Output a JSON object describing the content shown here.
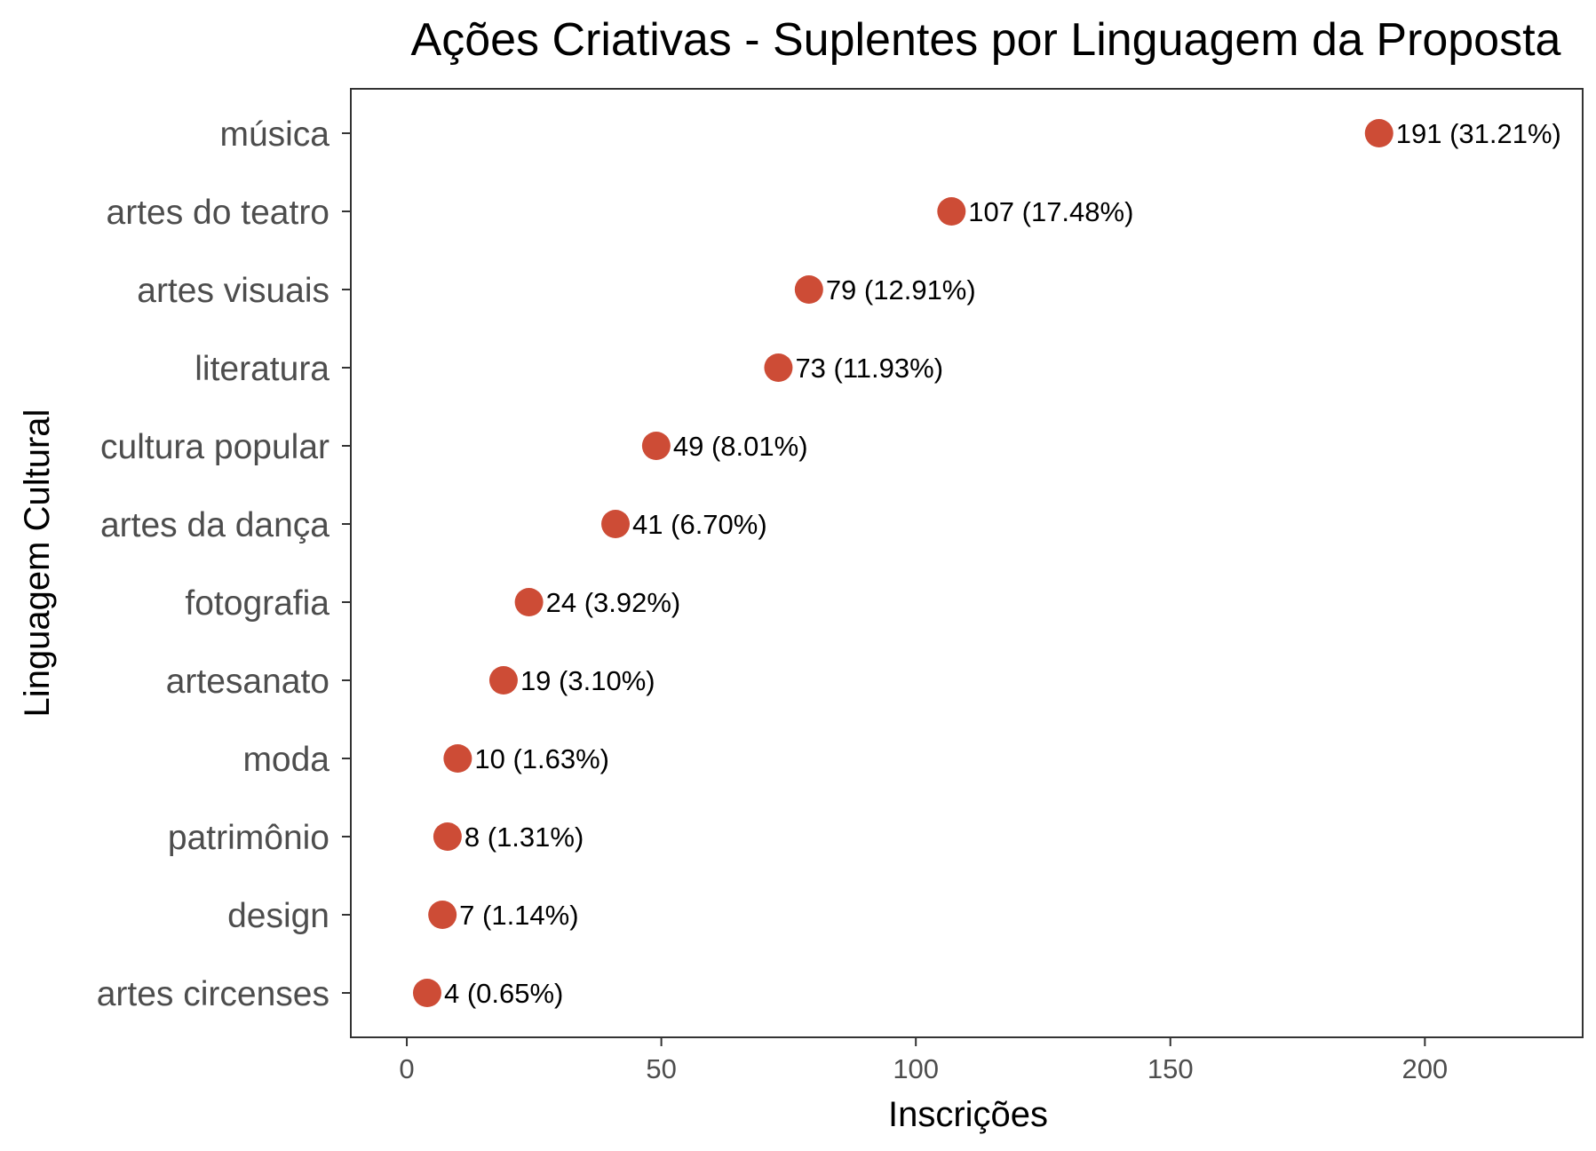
{
  "chart_data": {
    "type": "scatter",
    "title": "Ações Criativas - Suplentes por Linguagem da Proposta",
    "xlabel": "Inscrições",
    "ylabel": "Linguagem Cultural",
    "xlim": [
      -11,
      231
    ],
    "x_ticks": [
      0,
      50,
      100,
      150,
      200
    ],
    "grid": false,
    "point_color": "#cd4c36",
    "categories": [
      "música",
      "artes do teatro",
      "artes visuais",
      "literatura",
      "cultura popular",
      "artes da dança",
      "fotografia",
      "artesanato",
      "moda",
      "patrimônio",
      "design",
      "artes circenses"
    ],
    "values": [
      191,
      107,
      79,
      73,
      49,
      41,
      24,
      19,
      10,
      8,
      7,
      4
    ],
    "labels": [
      "191 (31.21%)",
      "107 (17.48%)",
      "79 (12.91%)",
      "73 (11.93%)",
      "49 (8.01%)",
      "41 (6.70%)",
      "24 (3.92%)",
      "19 (3.10%)",
      "10 (1.63%)",
      "8 (1.31%)",
      "7 (1.14%)",
      "4 (0.65%)"
    ]
  }
}
